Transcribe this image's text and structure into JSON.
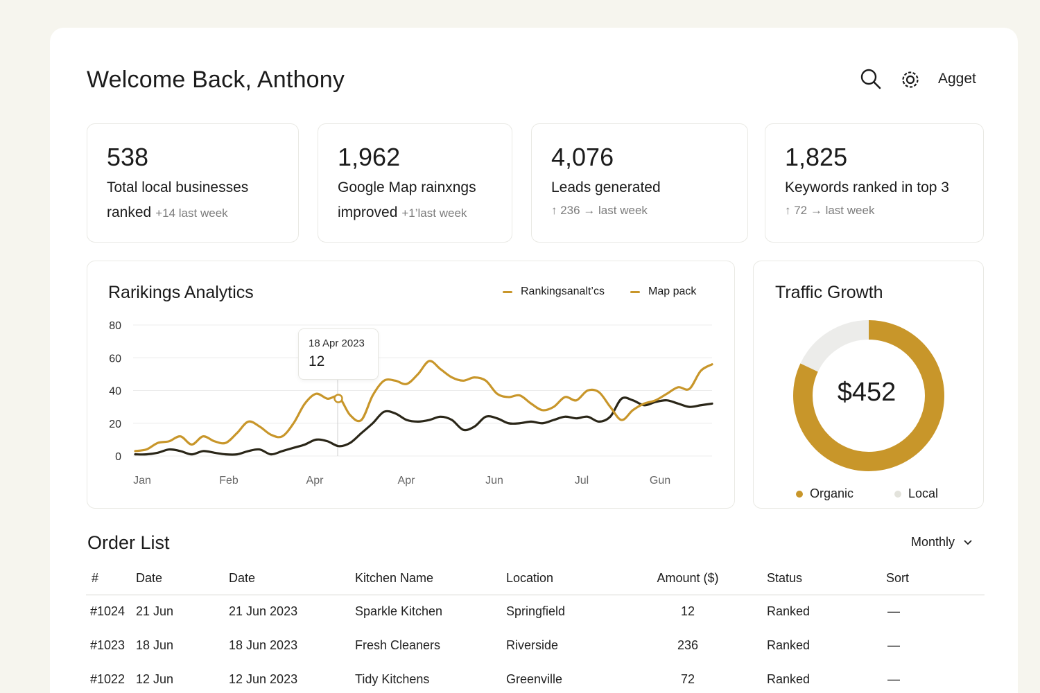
{
  "header": {
    "title": "Welcome Back, Anthony",
    "user_label": "Agget"
  },
  "stats": [
    {
      "value": "538",
      "label_line1": "Total local businesses",
      "label_line2": "ranked",
      "change": "+14 last week"
    },
    {
      "value": "1,962",
      "label_line1": "Google Map rainxngs",
      "label_line2": "improved",
      "change": "+1’last week"
    },
    {
      "value": "4,076",
      "label": "Leads generated",
      "change": "↑ 236 → last week"
    },
    {
      "value": "1,825",
      "label": "Keywords ranked in top 3",
      "change": "↑ 72 → last week"
    }
  ],
  "analytics": {
    "title": "Rarikings Analytics",
    "legend": [
      "Rankingsanalt’cs",
      "Map pack"
    ],
    "tooltip": {
      "date": "18 Apr 2023",
      "value": "12"
    }
  },
  "chart_data": {
    "type": "line",
    "x_labels": [
      "Jan",
      "Feb",
      "Apr",
      "Apr",
      "Jun",
      "Jul",
      "Gun"
    ],
    "y_ticks": [
      0,
      20,
      40,
      60,
      80
    ],
    "ylim": [
      0,
      80
    ],
    "series": [
      {
        "name": "Rankingsanalt’cs",
        "color": "#c8962a",
        "values": [
          3,
          4,
          8,
          9,
          12,
          7,
          12,
          9,
          8,
          14,
          21,
          18,
          13,
          12,
          20,
          32,
          38,
          35,
          36,
          25,
          22,
          37,
          46,
          46,
          44,
          50,
          58,
          53,
          48,
          46,
          48,
          46,
          38,
          36,
          37,
          32,
          28,
          30,
          36,
          34,
          40,
          39,
          30,
          22,
          28,
          32,
          34,
          38,
          42,
          41,
          52,
          56
        ]
      },
      {
        "name": "Map pack",
        "color": "#2a2618",
        "values": [
          1,
          1,
          2,
          4,
          3,
          1,
          3,
          2,
          1,
          1,
          3,
          4,
          1,
          3,
          5,
          7,
          10,
          9,
          6,
          8,
          14,
          20,
          27,
          26,
          22,
          21,
          22,
          24,
          22,
          16,
          18,
          24,
          23,
          20,
          20,
          21,
          20,
          22,
          24,
          23,
          24,
          21,
          24,
          35,
          34,
          31,
          33,
          34,
          32,
          30,
          31,
          32
        ]
      }
    ]
  },
  "traffic": {
    "title": "Traffic Growth",
    "center_value": "$452",
    "legend": [
      "Organic",
      "Local"
    ]
  },
  "donut_data": {
    "type": "pie",
    "slices": [
      {
        "name": "Organic",
        "value": 82,
        "color": "#c8962a"
      },
      {
        "name": "Local",
        "value": 18,
        "color": "#ececea"
      }
    ]
  },
  "orders": {
    "title": "Order List",
    "filter": "Monthly",
    "columns": [
      "#",
      "Date",
      "Date",
      "Kitchen Name",
      "Location",
      "Amount ($)",
      "Status",
      "Sort"
    ],
    "rows": [
      [
        "#1024",
        "21 Jun",
        "21 Jun  2023",
        "Sparkle Kitchen",
        "Springfield",
        "12",
        "Ranked",
        "—"
      ],
      [
        "#1023",
        "18 Jun",
        "18 Jun  2023",
        "Fresh Cleaners",
        "Riverside",
        "236",
        "Ranked",
        "—"
      ],
      [
        "#1022",
        "12 Jun",
        "12 Jun  2023",
        "Tidy Kitchens",
        "Greenville",
        "72",
        "Ranked",
        "—"
      ]
    ]
  }
}
